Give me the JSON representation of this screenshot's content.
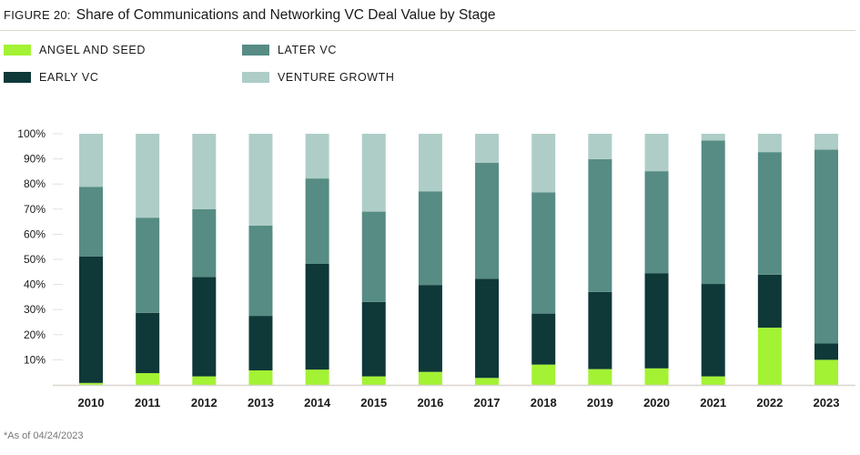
{
  "figure_label": "FIGURE 20:",
  "footnote": "*As of 04/24/2023",
  "chart_data": {
    "type": "bar",
    "stacked": true,
    "title": "Share of Communications and Networking VC Deal Value by Stage",
    "xlabel": "",
    "ylabel": "",
    "ylim": [
      0,
      100
    ],
    "yticks": [
      "10%",
      "20%",
      "30%",
      "40%",
      "50%",
      "60%",
      "70%",
      "80%",
      "90%",
      "100%"
    ],
    "legend_position": "top-left",
    "categories": [
      "2010",
      "2011",
      "2012",
      "2013",
      "2014",
      "2015",
      "2016",
      "2017",
      "2018",
      "2019",
      "2020",
      "2021",
      "2022",
      "2023"
    ],
    "series": [
      {
        "name": "ANGEL AND SEED",
        "color": "#a3f233",
        "values": [
          0.8,
          4.7,
          3.4,
          5.8,
          6.1,
          3.4,
          5.2,
          2.8,
          8.1,
          6.3,
          6.6,
          3.4,
          22.8,
          10.0
        ]
      },
      {
        "name": "EARLY VC",
        "color": "#0f3838",
        "values": [
          50.3,
          24.0,
          39.6,
          21.7,
          42.1,
          29.6,
          34.6,
          39.4,
          20.3,
          30.7,
          37.9,
          36.8,
          21.1,
          6.5
        ]
      },
      {
        "name": "LATER VC",
        "color": "#568c83",
        "values": [
          27.8,
          37.9,
          27.0,
          35.9,
          34.0,
          36.0,
          37.3,
          46.2,
          48.3,
          52.9,
          40.6,
          57.1,
          48.8,
          77.2
        ]
      },
      {
        "name": "VENTURE GROWTH",
        "color": "#aecdc7",
        "values": [
          21.1,
          33.4,
          30.0,
          36.6,
          17.8,
          31.0,
          22.9,
          11.6,
          23.3,
          10.1,
          14.9,
          2.7,
          7.3,
          6.3
        ]
      }
    ]
  }
}
